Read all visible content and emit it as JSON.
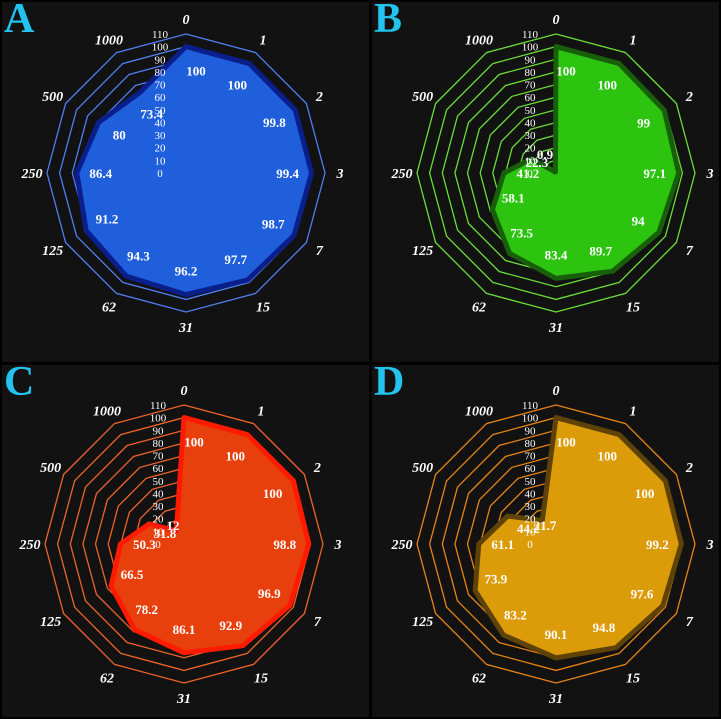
{
  "chart_data": [
    {
      "type": "radar",
      "panel_label": "A",
      "categories": [
        "0",
        "1",
        "2",
        "3",
        "7",
        "15",
        "31",
        "62",
        "125",
        "250",
        "500",
        "1000"
      ],
      "values": [
        100,
        100,
        99.8,
        99.4,
        98.7,
        97.7,
        96.2,
        94.3,
        91.2,
        86.4,
        80,
        73.4
      ],
      "value_labels": [
        "100",
        "100",
        "99.8",
        "99.4",
        "98.7",
        "97.7",
        "96.2",
        "94.3",
        "91.2",
        "86.4",
        "80",
        "73.4"
      ],
      "ticks": [
        0,
        10,
        20,
        30,
        40,
        50,
        60,
        70,
        80,
        90,
        100,
        110
      ],
      "tick_labels": [
        "0",
        "10",
        "20",
        "30",
        "40",
        "50",
        "60",
        "70",
        "80",
        "90",
        "100",
        "110"
      ],
      "rlim": [
        0,
        110
      ],
      "grid": true,
      "colors": {
        "fill": "#1f5fdc",
        "outline": "#0b1f8c",
        "grid": "#4f7ff2"
      }
    },
    {
      "type": "radar",
      "panel_label": "B",
      "categories": [
        "0",
        "1",
        "2",
        "3",
        "7",
        "15",
        "31",
        "62",
        "125",
        "250",
        "500",
        "1000"
      ],
      "values": [
        100,
        100,
        99,
        97.1,
        94,
        89.7,
        83.4,
        73.5,
        58.1,
        41.2,
        22.3,
        0.9
      ],
      "value_labels": [
        "100",
        "100",
        "99",
        "97.1",
        "94",
        "89.7",
        "83.4",
        "73.5",
        "58.1",
        "41.2",
        "22.3",
        "0.9"
      ],
      "ticks": [
        0,
        10,
        20,
        30,
        40,
        50,
        60,
        70,
        80,
        90,
        100,
        110
      ],
      "tick_labels": [
        "0",
        "10",
        "20",
        "30",
        "40",
        "50",
        "60",
        "70",
        "80",
        "90",
        "100",
        "110"
      ],
      "rlim": [
        0,
        110
      ],
      "grid": true,
      "colors": {
        "fill": "#2cc40f",
        "outline": "#185f0a",
        "grid": "#6bde38"
      }
    },
    {
      "type": "radar",
      "panel_label": "C",
      "categories": [
        "0",
        "1",
        "2",
        "3",
        "7",
        "15",
        "31",
        "62",
        "125",
        "250",
        "500",
        "1000"
      ],
      "values": [
        100,
        100,
        100,
        98.8,
        96.9,
        92.9,
        86.1,
        78.2,
        66.5,
        50.3,
        31.8,
        12
      ],
      "value_labels": [
        "100",
        "100",
        "100",
        "98.8",
        "96.9",
        "92.9",
        "86.1",
        "78.2",
        "66.5",
        "50.3",
        "31.8",
        "12"
      ],
      "ticks": [
        0,
        10,
        20,
        30,
        40,
        50,
        60,
        70,
        80,
        90,
        100,
        110
      ],
      "tick_labels": [
        "0",
        "10",
        "20",
        "30",
        "40",
        "50",
        "60",
        "70",
        "80",
        "90",
        "100",
        "110"
      ],
      "rlim": [
        0,
        110
      ],
      "grid": true,
      "colors": {
        "fill": "#e8400d",
        "outline": "#ff1a00",
        "grid": "#f0642a"
      }
    },
    {
      "type": "radar",
      "panel_label": "D",
      "categories": [
        "0",
        "1",
        "2",
        "3",
        "7",
        "15",
        "31",
        "62",
        "125",
        "250",
        "500",
        "1000"
      ],
      "values": [
        100,
        100,
        100,
        99.2,
        97.6,
        94.8,
        90.1,
        83.2,
        73.9,
        61.1,
        44.2,
        21.7
      ],
      "value_labels": [
        "100",
        "100",
        "100",
        "99.2",
        "97.6",
        "94.8",
        "90.1",
        "83.2",
        "73.9",
        "61.1",
        "44.2",
        "21.7"
      ],
      "ticks": [
        0,
        10,
        20,
        30,
        40,
        50,
        60,
        70,
        80,
        90,
        100,
        110
      ],
      "tick_labels": [
        "0",
        "10",
        "20",
        "30",
        "40",
        "50",
        "60",
        "70",
        "80",
        "90",
        "100",
        "110"
      ],
      "rlim": [
        0,
        110
      ],
      "grid": true,
      "colors": {
        "fill": "#dc9b08",
        "outline": "#5e4206",
        "grid": "#e78416"
      }
    }
  ]
}
